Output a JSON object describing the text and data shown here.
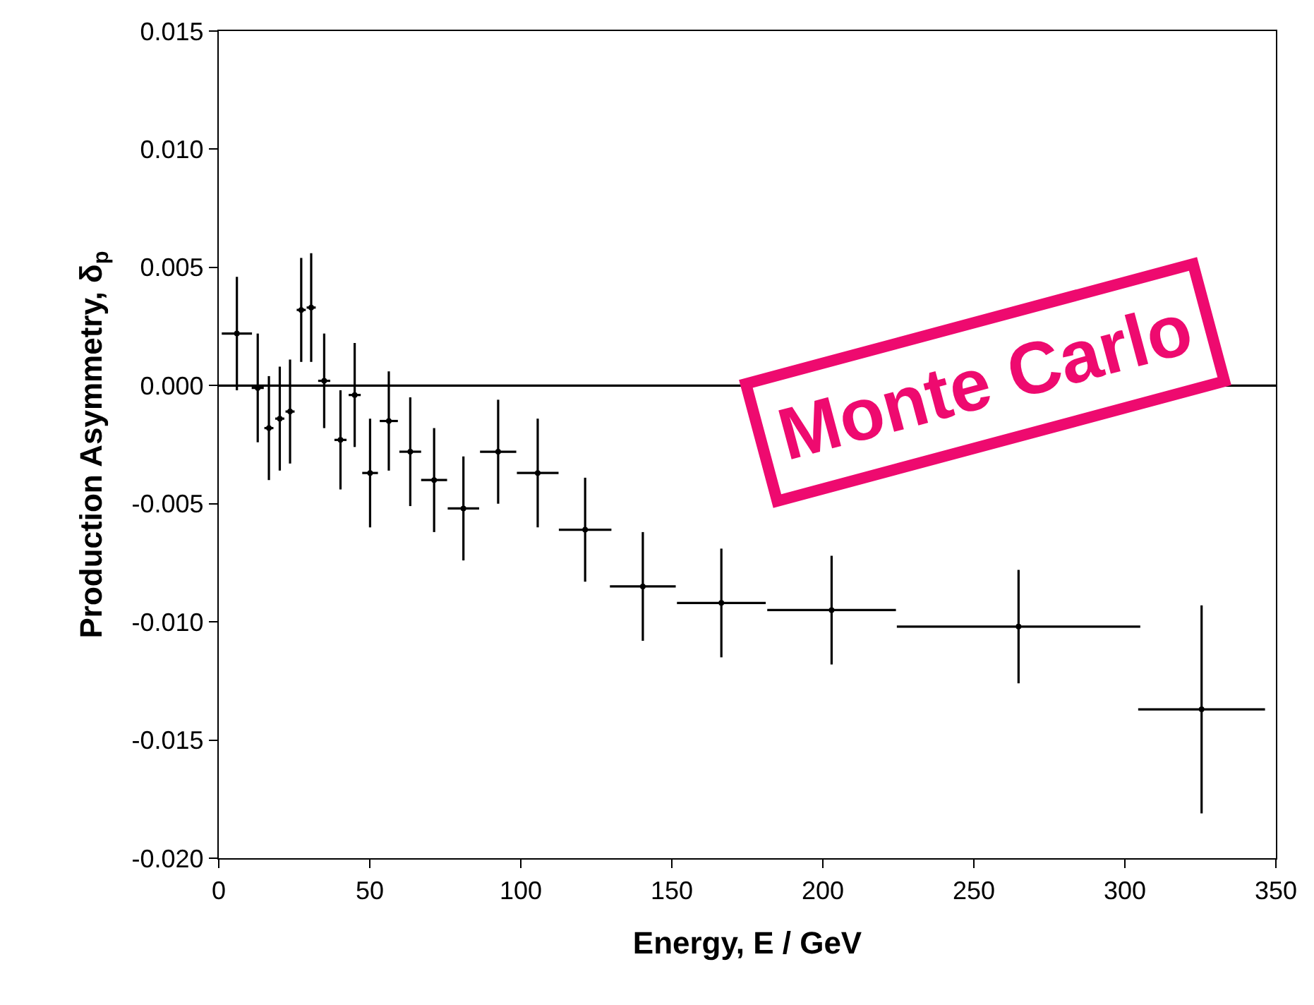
{
  "chart_data": {
    "type": "scatter",
    "xlabel": "Energy, E / GeV",
    "ylabel": "Production Asymmetry, δ$_{p}$",
    "annotations": [
      "Monte Carlo"
    ],
    "x": [
      6.0,
      12.9,
      16.6,
      20.2,
      23.6,
      27.3,
      30.6,
      34.9,
      40.3,
      45.0,
      50.1,
      56.3,
      63.4,
      71.3,
      81.0,
      92.5,
      105.6,
      121.3,
      140.4,
      166.4,
      202.9,
      264.8,
      325.4
    ],
    "series": [
      {
        "color": "#000000",
        "values": [
          0.0022,
          -0.0001,
          -0.0018,
          -0.0014,
          -0.0011,
          0.0032,
          0.0033,
          0.0002,
          -0.0023,
          -0.0004,
          -0.0037,
          -0.0015,
          -0.0028,
          -0.004,
          -0.0052,
          -0.0028,
          -0.0037,
          -0.0061,
          -0.0085,
          -0.0092,
          -0.0095,
          -0.0102,
          -0.0137
        ],
        "errors": [
          0.0024,
          0.0023,
          0.0022,
          0.0022,
          0.0022,
          0.0022,
          0.0023,
          0.002,
          0.0021,
          0.0022,
          0.0023,
          0.0021,
          0.0023,
          0.0022,
          0.0022,
          0.0022,
          0.0023,
          0.0022,
          0.0023,
          0.0023,
          0.0023,
          0.0024,
          0.0044
        ],
        "xerrors": [
          5.0,
          2.0,
          1.5,
          1.5,
          1.5,
          1.5,
          1.5,
          2.0,
          2.0,
          2.0,
          2.6,
          3.0,
          3.6,
          4.3,
          5.2,
          6.0,
          6.9,
          8.7,
          10.9,
          14.7,
          21.3,
          40.3,
          21.0
        ]
      }
    ],
    "xlim": [
      0,
      350
    ],
    "xticks": [
      0,
      50,
      100,
      150,
      200,
      250,
      300,
      350
    ],
    "ylim": [
      -0.02,
      0.015
    ],
    "yticks": [
      {
        "value": -0.02,
        "label": "-0.020"
      },
      {
        "value": -0.015,
        "label": "-0.015"
      },
      {
        "value": -0.01,
        "label": "-0.010"
      },
      {
        "value": -0.005,
        "label": "-0.005"
      },
      {
        "value": 0,
        "label": "0.000"
      },
      {
        "value": 0.005,
        "label": "0.005"
      },
      {
        "value": 0.01,
        "label": "0.010"
      },
      {
        "value": 0.015,
        "label": "0.015"
      }
    ],
    "ref_lines": [
      {
        "axis": "y",
        "value": 0,
        "color": "#000000"
      }
    ],
    "legend": false
  }
}
